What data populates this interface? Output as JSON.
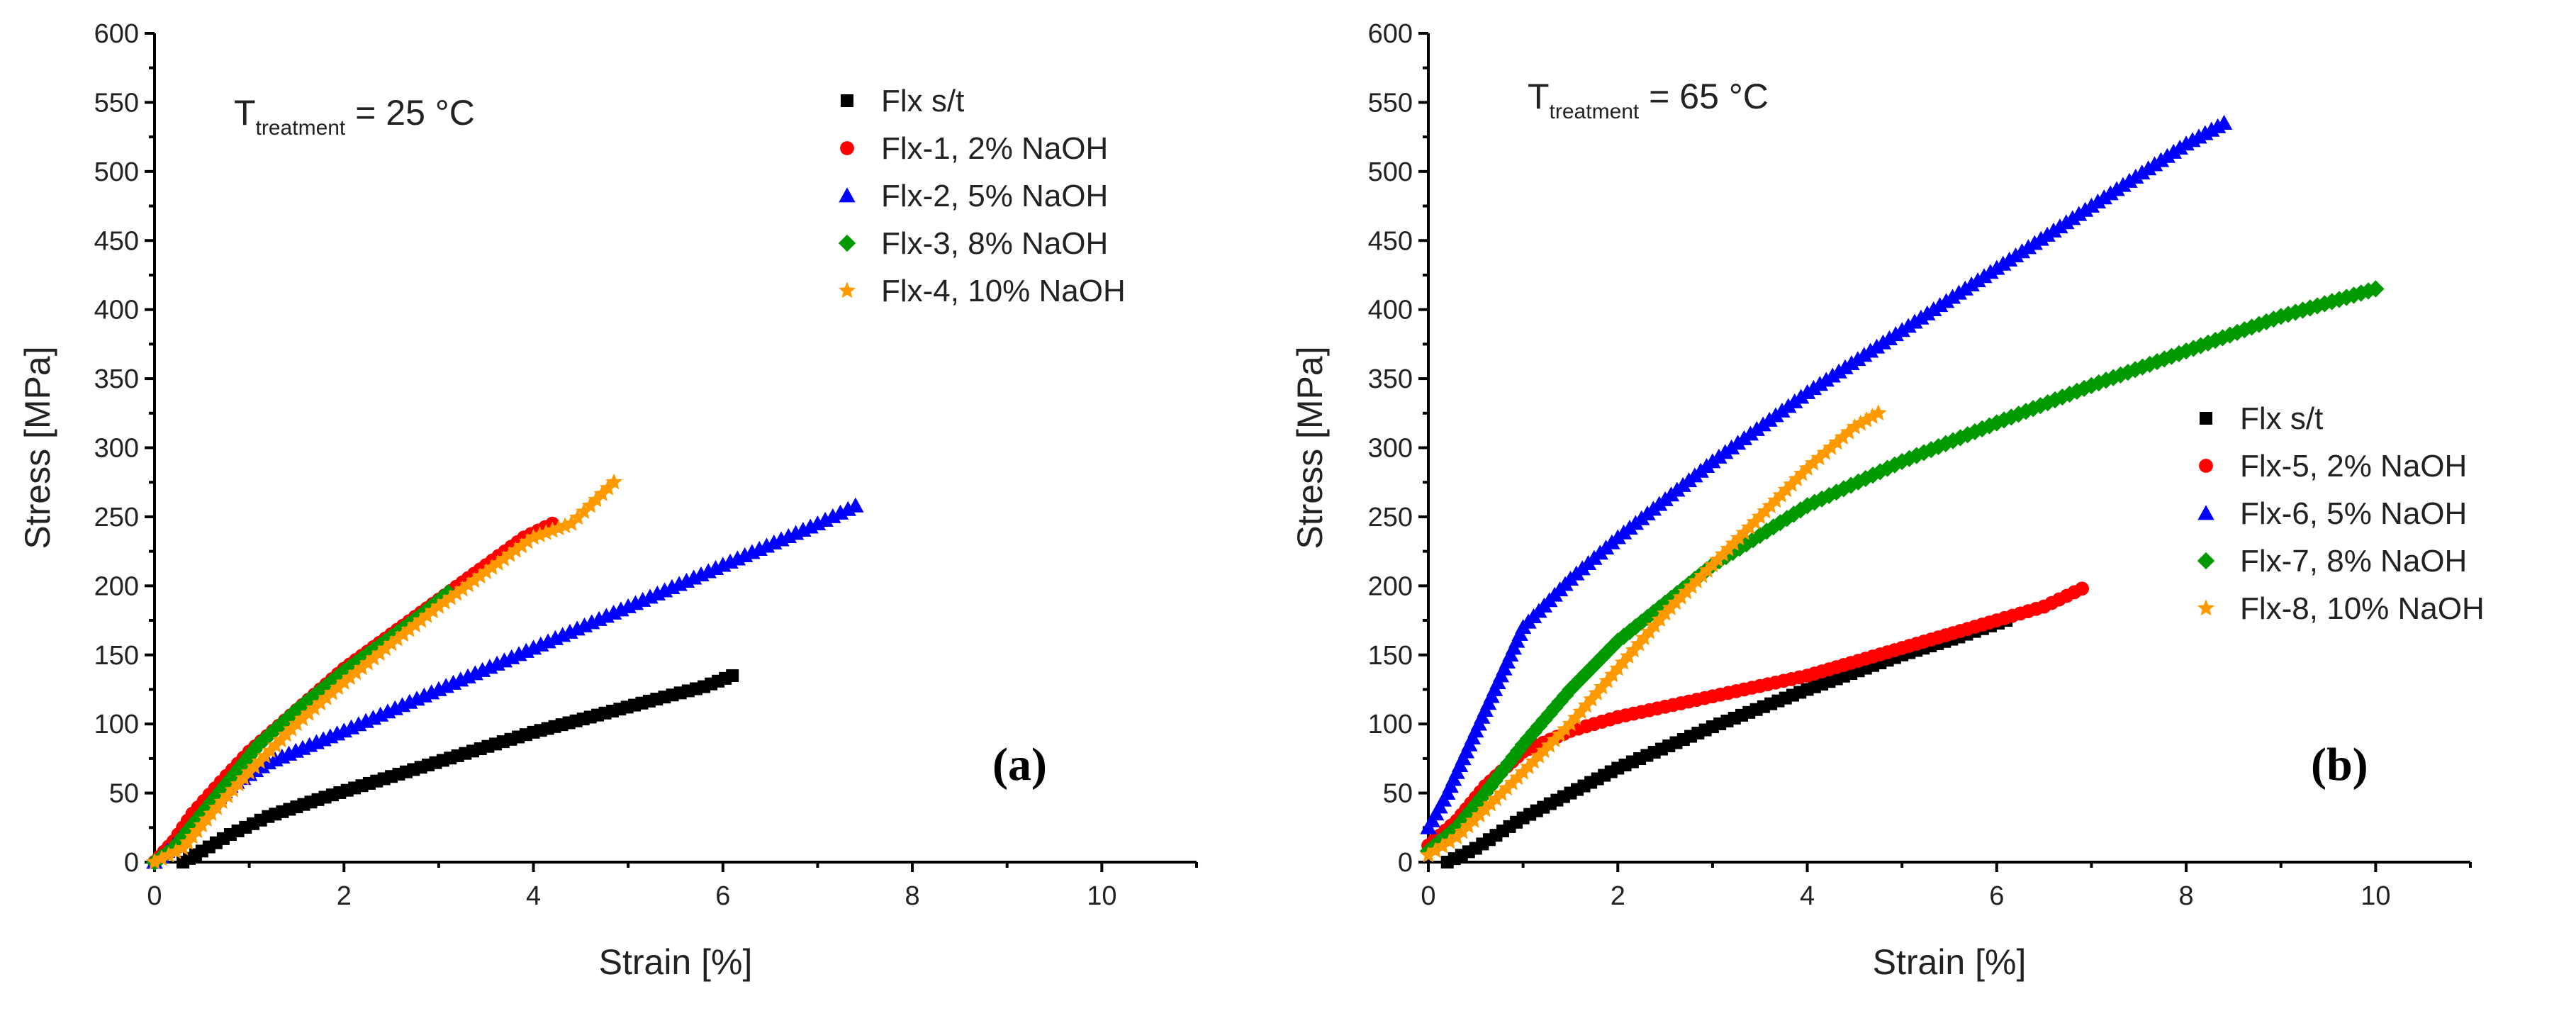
{
  "chart_data": [
    {
      "type": "scatter",
      "panel_label": "(a)",
      "annotation": {
        "prefix": "T",
        "subscript": "treatment",
        "suffix": " = 25 °C"
      },
      "xlabel": "Strain [%]",
      "ylabel": "Stress [MPa]",
      "xlim": [
        0,
        11
      ],
      "ylim": [
        0,
        600
      ],
      "xticks": [
        0,
        2,
        4,
        6,
        8,
        10
      ],
      "yticks": [
        0,
        50,
        100,
        150,
        200,
        250,
        300,
        350,
        400,
        450,
        500,
        550,
        600
      ],
      "legend_position": "top-right",
      "series": [
        {
          "name": "Flx s/t",
          "color": "#000000",
          "marker": "square",
          "points": [
            [
              0.3,
              0
            ],
            [
              0.5,
              8
            ],
            [
              0.8,
              20
            ],
            [
              1.2,
              33
            ],
            [
              1.8,
              47
            ],
            [
              2.5,
              62
            ],
            [
              3.2,
              77
            ],
            [
              4.0,
              94
            ],
            [
              4.6,
              105
            ],
            [
              5.3,
              118
            ],
            [
              5.8,
              127
            ],
            [
              6.1,
              135
            ]
          ]
        },
        {
          "name": "Flx-1,  2% NaOH",
          "color": "#ff0000",
          "marker": "circle",
          "points": [
            [
              0,
              0
            ],
            [
              0.2,
              15
            ],
            [
              0.4,
              35
            ],
            [
              0.7,
              58
            ],
            [
              1.0,
              80
            ],
            [
              1.5,
              110
            ],
            [
              2.0,
              140
            ],
            [
              2.5,
              165
            ],
            [
              3.0,
              190
            ],
            [
              3.5,
              215
            ],
            [
              3.9,
              235
            ],
            [
              4.2,
              245
            ]
          ]
        },
        {
          "name": "Flx-2,  5% NaOH",
          "color": "#0000ff",
          "marker": "triangle",
          "points": [
            [
              0,
              0
            ],
            [
              0.2,
              12
            ],
            [
              0.5,
              35
            ],
            [
              0.8,
              55
            ],
            [
              1.2,
              72
            ],
            [
              2.0,
              95
            ],
            [
              3.0,
              125
            ],
            [
              4.0,
              155
            ],
            [
              5.0,
              185
            ],
            [
              6.0,
              215
            ],
            [
              7.0,
              245
            ],
            [
              7.4,
              258
            ]
          ]
        },
        {
          "name": "Flx-3,  8% NaOH",
          "color": "#009900",
          "marker": "diamond",
          "points": [
            [
              0,
              0
            ],
            [
              0.2,
              10
            ],
            [
              0.5,
              35
            ],
            [
              0.8,
              60
            ],
            [
              1.1,
              85
            ],
            [
              1.5,
              110
            ],
            [
              2.0,
              138
            ],
            [
              2.5,
              163
            ],
            [
              2.8,
              178
            ],
            [
              3.1,
              195
            ]
          ]
        },
        {
          "name": "Flx-4, 10% NaOH",
          "color": "#ff9900",
          "marker": "star",
          "points": [
            [
              0,
              0
            ],
            [
              0.3,
              10
            ],
            [
              0.6,
              35
            ],
            [
              1.0,
              65
            ],
            [
              1.5,
              100
            ],
            [
              2.0,
              130
            ],
            [
              2.5,
              158
            ],
            [
              3.0,
              185
            ],
            [
              3.5,
              210
            ],
            [
              4.0,
              235
            ],
            [
              4.2,
              240
            ],
            [
              4.4,
              245
            ],
            [
              4.6,
              258
            ],
            [
              4.85,
              275
            ]
          ]
        }
      ]
    },
    {
      "type": "scatter",
      "panel_label": "(b)",
      "annotation": {
        "prefix": "T",
        "subscript": "treatment",
        "suffix": " = 65 °C"
      },
      "xlabel": "Strain [%]",
      "ylabel": "Stress [MPa]",
      "xlim": [
        0,
        11
      ],
      "ylim": [
        0,
        600
      ],
      "xticks": [
        0,
        2,
        4,
        6,
        8,
        10
      ],
      "yticks": [
        0,
        50,
        100,
        150,
        200,
        250,
        300,
        350,
        400,
        450,
        500,
        550,
        600
      ],
      "legend_position": "center-right",
      "series": [
        {
          "name": "Flx s/t",
          "color": "#000000",
          "marker": "square",
          "points": [
            [
              0.2,
              0
            ],
            [
              0.5,
              10
            ],
            [
              1.0,
              32
            ],
            [
              1.5,
              50
            ],
            [
              2.0,
              68
            ],
            [
              3.0,
              98
            ],
            [
              4.0,
              125
            ],
            [
              5.0,
              150
            ],
            [
              5.6,
              163
            ],
            [
              6.1,
              175
            ]
          ]
        },
        {
          "name": "Flx-5,  2% NaOH",
          "color": "#ff0000",
          "marker": "circle",
          "points": [
            [
              0,
              12
            ],
            [
              0.3,
              30
            ],
            [
              0.6,
              55
            ],
            [
              1.0,
              80
            ],
            [
              1.5,
              95
            ],
            [
              2.0,
              105
            ],
            [
              3.0,
              120
            ],
            [
              4.0,
              135
            ],
            [
              5.0,
              155
            ],
            [
              6.0,
              175
            ],
            [
              6.5,
              185
            ],
            [
              6.9,
              198
            ]
          ]
        },
        {
          "name": "Flx-6,  5% NaOH",
          "color": "#0000ff",
          "marker": "triangle",
          "points": [
            [
              0,
              25
            ],
            [
              0.2,
              50
            ],
            [
              0.4,
              80
            ],
            [
              0.6,
              110
            ],
            [
              0.8,
              140
            ],
            [
              1.0,
              170
            ],
            [
              1.5,
              205
            ],
            [
              2.0,
              235
            ],
            [
              3.0,
              290
            ],
            [
              4.0,
              340
            ],
            [
              5.0,
              385
            ],
            [
              6.0,
              430
            ],
            [
              7.0,
              475
            ],
            [
              8.0,
              520
            ],
            [
              8.4,
              535
            ]
          ]
        },
        {
          "name": "Flx-7,  8% NaOH",
          "color": "#009900",
          "marker": "diamond",
          "points": [
            [
              0,
              8
            ],
            [
              0.3,
              25
            ],
            [
              0.6,
              50
            ],
            [
              1.0,
              85
            ],
            [
              1.5,
              125
            ],
            [
              2.0,
              160
            ],
            [
              3.0,
              215
            ],
            [
              4.0,
              258
            ],
            [
              5.0,
              290
            ],
            [
              6.0,
              318
            ],
            [
              7.0,
              345
            ],
            [
              8.0,
              370
            ],
            [
              9.0,
              395
            ],
            [
              10.0,
              415
            ]
          ]
        },
        {
          "name": "Flx-8, 10% NaOH",
          "color": "#ff9900",
          "marker": "star",
          "points": [
            [
              0,
              5
            ],
            [
              0.3,
              18
            ],
            [
              0.6,
              38
            ],
            [
              1.0,
              65
            ],
            [
              1.5,
              100
            ],
            [
              2.0,
              140
            ],
            [
              2.5,
              180
            ],
            [
              3.0,
              215
            ],
            [
              3.5,
              250
            ],
            [
              4.0,
              285
            ],
            [
              4.5,
              315
            ],
            [
              4.75,
              325
            ]
          ]
        }
      ]
    }
  ]
}
